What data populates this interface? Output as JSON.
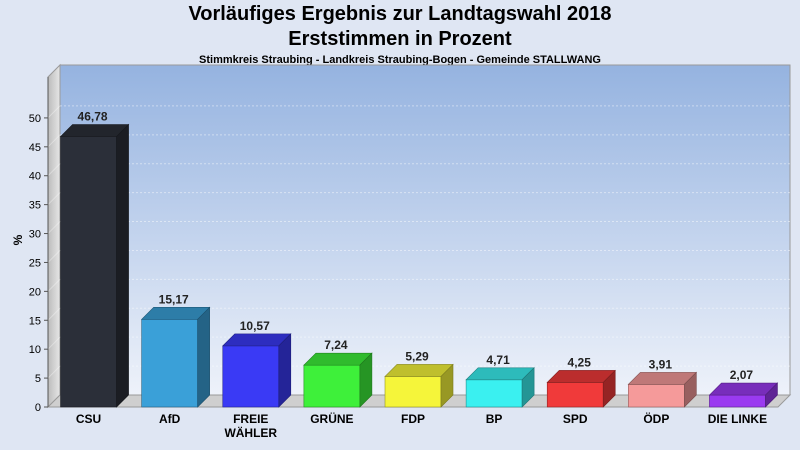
{
  "title": "Vorläufiges Ergebnis zur Landtagswahl 2018",
  "subtitle": "Erststimmen in Prozent",
  "caption": "Stimmkreis Straubing - Landkreis Straubing-Bogen - Gemeinde STALLWANG",
  "chart_data": {
    "type": "bar",
    "ylabel": "%",
    "ylim": [
      0,
      55
    ],
    "yticks": [
      0,
      5,
      10,
      15,
      20,
      25,
      30,
      35,
      40,
      45,
      50
    ],
    "grid": true,
    "categories": [
      "CSU",
      "AfD",
      "FREIE WÄHLER",
      "GRÜNE",
      "FDP",
      "BP",
      "SPD",
      "ÖDP",
      "DIE LINKE"
    ],
    "category_lines": [
      [
        "CSU"
      ],
      [
        "AfD"
      ],
      [
        "FREIE",
        "WÄHLER"
      ],
      [
        "GRÜNE"
      ],
      [
        "FDP"
      ],
      [
        "BP"
      ],
      [
        "SPD"
      ],
      [
        "ÖDP"
      ],
      [
        "DIE LINKE"
      ]
    ],
    "values": [
      46.78,
      15.17,
      10.57,
      7.24,
      5.29,
      4.71,
      4.25,
      3.91,
      2.07
    ],
    "value_labels": [
      "46,78",
      "15,17",
      "10,57",
      "7,24",
      "5,29",
      "4,71",
      "4,25",
      "3,91",
      "2,07"
    ],
    "colors": [
      "#2b2f39",
      "#3aa0d8",
      "#3a3af5",
      "#3ef03a",
      "#f5f53a",
      "#3af0f0",
      "#f03a3a",
      "#f59a9a",
      "#9a3af0"
    ]
  }
}
